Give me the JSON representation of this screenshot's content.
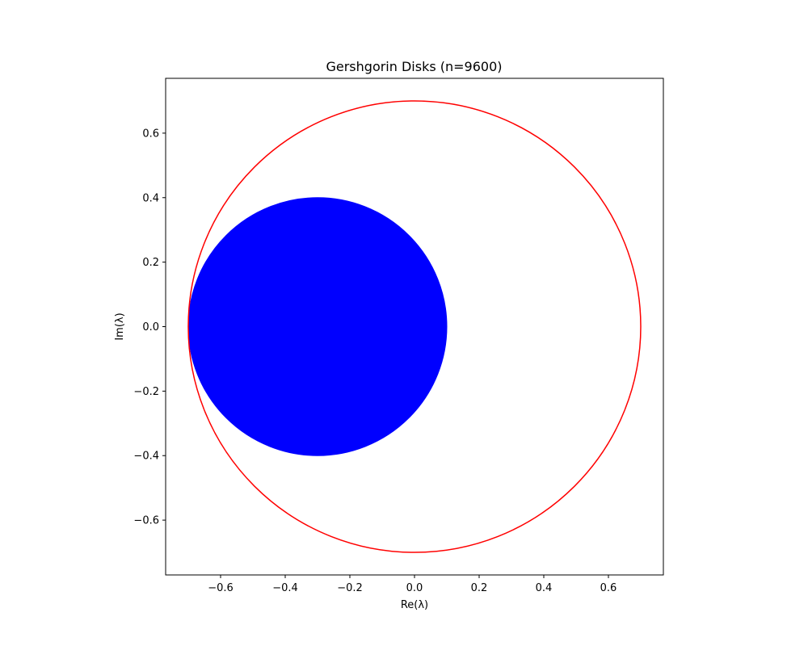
{
  "chart_data": {
    "type": "scatter",
    "title": "Gershgorin Disks (n=9600)",
    "xlabel": "Re(λ)",
    "ylabel": "Im(λ)",
    "xlim": [
      -0.77,
      0.77
    ],
    "ylim": [
      -0.77,
      0.77
    ],
    "x_ticks": [
      -0.6,
      -0.4,
      -0.2,
      0.0,
      0.2,
      0.4,
      0.6
    ],
    "y_ticks": [
      -0.6,
      -0.4,
      -0.2,
      0.0,
      0.2,
      0.4,
      0.6
    ],
    "x_tick_labels": [
      "−0.6",
      "−0.4",
      "−0.2",
      "0.0",
      "0.2",
      "0.4",
      "0.6"
    ],
    "y_tick_labels": [
      "−0.6",
      "−0.4",
      "−0.2",
      "0.0",
      "0.2",
      "0.4",
      "0.6"
    ],
    "grid": false,
    "legend": "none",
    "disks": [
      {
        "center": [
          -0.3,
          0.0
        ],
        "radius": 0.4,
        "color": "#0000ff",
        "filled": true,
        "count": 9600
      }
    ],
    "circles": [
      {
        "center": [
          0.0,
          0.0
        ],
        "radius": 0.7,
        "color": "#ff0000",
        "filled": false
      }
    ]
  }
}
